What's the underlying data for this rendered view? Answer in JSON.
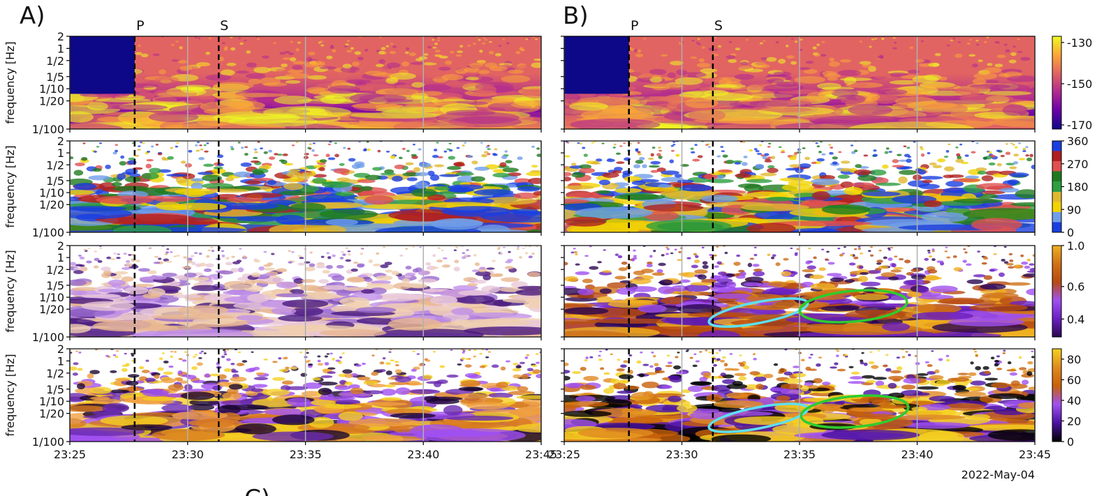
{
  "chart_data": [
    {
      "type": "spectrogram",
      "title": "A)",
      "ylabel": "frequency [Hz]",
      "yscale": "log",
      "ylim": [
        0.01,
        2
      ],
      "yticks": [
        {
          "value": 2,
          "label": "2"
        },
        {
          "value": 1,
          "label": "1"
        },
        {
          "value": 0.5,
          "label": "1/2"
        },
        {
          "value": 0.2,
          "label": "1/5"
        },
        {
          "value": 0.1,
          "label": "1/10"
        },
        {
          "value": 0.05,
          "label": "1/20"
        },
        {
          "value": 0.01,
          "label": "1/100"
        }
      ],
      "ytick_labels": true,
      "xlim": [
        "23:25",
        "23:45"
      ],
      "xticks": [
        "23:25",
        "23:30",
        "23:35",
        "23:40",
        "23:45"
      ],
      "xtick_labels": false,
      "markers": [
        {
          "label": "P",
          "time": "23:27:45"
        },
        {
          "label": "S",
          "time": "23:31:19"
        }
      ],
      "colormap": [
        "#0d0887",
        "#6a00a8",
        "#b12a90",
        "#e16462",
        "#fca636",
        "#f0f921"
      ]
    },
    {
      "type": "spectrogram",
      "ylabel": "frequency [Hz]",
      "yscale": "log",
      "ylim": [
        0.01,
        2
      ],
      "yticks": [
        {
          "value": 2,
          "label": "2"
        },
        {
          "value": 1,
          "label": "1"
        },
        {
          "value": 0.5,
          "label": "1/2"
        },
        {
          "value": 0.2,
          "label": "1/5"
        },
        {
          "value": 0.1,
          "label": "1/10"
        },
        {
          "value": 0.05,
          "label": "1/20"
        },
        {
          "value": 0.01,
          "label": "1/100"
        }
      ],
      "ytick_labels": true,
      "xlim": [
        "23:25",
        "23:45"
      ],
      "xticks": [
        "23:25",
        "23:30",
        "23:35",
        "23:40",
        "23:45"
      ],
      "xtick_labels": false,
      "markers": [
        {
          "time": "23:27:45"
        },
        {
          "time": "23:31:19"
        }
      ],
      "background": "#ffffff",
      "colormap": [
        "#1a3fe0",
        "#6f9ee8",
        "#f2d300",
        "#e0b830",
        "#2e9e40",
        "#1f7a1f",
        "#e05050",
        "#b02020",
        "#1a3fe0"
      ]
    },
    {
      "type": "spectrogram",
      "ylabel": "frequency [Hz]",
      "yscale": "log",
      "ylim": [
        0.01,
        2
      ],
      "yticks": [
        {
          "value": 2,
          "label": "2"
        },
        {
          "value": 1,
          "label": "1"
        },
        {
          "value": 0.5,
          "label": "1/2"
        },
        {
          "value": 0.2,
          "label": "1/5"
        },
        {
          "value": 0.1,
          "label": "1/10"
        },
        {
          "value": 0.05,
          "label": "1/20"
        },
        {
          "value": 0.01,
          "label": "1/100"
        }
      ],
      "ytick_labels": true,
      "xlim": [
        "23:25",
        "23:45"
      ],
      "xticks": [
        "23:25",
        "23:30",
        "23:35",
        "23:40",
        "23:45"
      ],
      "xtick_labels": false,
      "markers": [
        {
          "time": "23:27:45"
        },
        {
          "time": "23:31:19"
        }
      ],
      "background": "#ffffff",
      "colormap": [
        "#e8c8d8",
        "#9a6ad0",
        "#c090e8",
        "#f0d0b0",
        "#e8b890",
        "#4a1a80"
      ]
    },
    {
      "type": "spectrogram",
      "ylabel": "frequency [Hz]",
      "yscale": "log",
      "ylim": [
        0.01,
        2
      ],
      "yticks": [
        {
          "value": 2,
          "label": "2"
        },
        {
          "value": 1,
          "label": "1"
        },
        {
          "value": 0.5,
          "label": "1/2"
        },
        {
          "value": 0.2,
          "label": "1/5"
        },
        {
          "value": 0.1,
          "label": "1/10"
        },
        {
          "value": 0.05,
          "label": "1/20"
        },
        {
          "value": 0.01,
          "label": "1/100"
        }
      ],
      "ytick_labels": true,
      "xlim": [
        "23:25",
        "23:45"
      ],
      "xticks": [
        "23:25",
        "23:30",
        "23:35",
        "23:40",
        "23:45"
      ],
      "xtick_labels": true,
      "markers": [
        {
          "time": "23:27:45"
        },
        {
          "time": "23:31:19"
        }
      ],
      "background": "#ffffff",
      "colormap": [
        "#1a0530",
        "#6a2ab0",
        "#a050f0",
        "#d87a20",
        "#f0a040",
        "#f5d020"
      ]
    },
    {
      "type": "spectrogram",
      "title": "B)",
      "yscale": "log",
      "ylim": [
        0.01,
        2
      ],
      "yticks": [
        2,
        1,
        0.5,
        0.2,
        0.1,
        0.05,
        0.01
      ],
      "ytick_labels": false,
      "xlim": [
        "23:25",
        "23:45"
      ],
      "xticks": [
        "23:25",
        "23:30",
        "23:35",
        "23:40",
        "23:45"
      ],
      "xtick_labels": false,
      "markers": [
        {
          "label": "P",
          "time": "23:27:45"
        },
        {
          "label": "S",
          "time": "23:31:19"
        }
      ],
      "colormap": [
        "#0d0887",
        "#6a00a8",
        "#b12a90",
        "#e16462",
        "#fca636",
        "#f0f921"
      ],
      "colorbar": {
        "lim": [
          -172,
          -127
        ],
        "ticks": [
          -130,
          -150,
          -170
        ]
      }
    },
    {
      "type": "spectrogram",
      "yscale": "log",
      "ylim": [
        0.01,
        2
      ],
      "yticks": [
        2,
        1,
        0.5,
        0.2,
        0.1,
        0.05,
        0.01
      ],
      "ytick_labels": false,
      "xlim": [
        "23:25",
        "23:45"
      ],
      "xticks": [
        "23:25",
        "23:30",
        "23:35",
        "23:40",
        "23:45"
      ],
      "xtick_labels": false,
      "markers": [
        {
          "time": "23:27:45"
        },
        {
          "time": "23:31:19"
        }
      ],
      "background": "#ffffff",
      "colormap": [
        "#1a3fe0",
        "#6f9ee8",
        "#f2d300",
        "#e0b830",
        "#2e9e40",
        "#1f7a1f",
        "#e05050",
        "#b02020",
        "#1a3fe0"
      ],
      "colorbar": {
        "lim": [
          0,
          360
        ],
        "ticks": [
          360,
          270,
          180,
          90,
          0
        ],
        "discrete": true
      }
    },
    {
      "type": "spectrogram",
      "yscale": "log",
      "ylim": [
        0.01,
        2
      ],
      "yticks": [
        2,
        1,
        0.5,
        0.2,
        0.1,
        0.05,
        0.01
      ],
      "ytick_labels": false,
      "xlim": [
        "23:25",
        "23:45"
      ],
      "xticks": [
        "23:25",
        "23:30",
        "23:35",
        "23:40",
        "23:45"
      ],
      "xtick_labels": false,
      "markers": [
        {
          "time": "23:27:45"
        },
        {
          "time": "23:31:19"
        }
      ],
      "background": "#ffffff",
      "colormap": [
        "#2a0850",
        "#6a20c0",
        "#a050f0",
        "#b84a10",
        "#d07018",
        "#f0b020"
      ],
      "colorbar": {
        "lim": [
          0.32,
          1.0
        ],
        "scale": "log",
        "ticks": [
          {
            "value": 1.0,
            "label": "1.0"
          },
          0.6,
          0.4
        ]
      }
    },
    {
      "type": "spectrogram",
      "yscale": "log",
      "ylim": [
        0.01,
        2
      ],
      "yticks": [
        2,
        1,
        0.5,
        0.2,
        0.1,
        0.05,
        0.01
      ],
      "ytick_labels": false,
      "xlim": [
        "23:25",
        "23:45"
      ],
      "xticks": [
        "23:25",
        "23:30",
        "23:35",
        "23:40",
        "23:45"
      ],
      "xtick_labels": true,
      "markers": [
        {
          "time": "23:27:45"
        },
        {
          "time": "23:31:19"
        }
      ],
      "background": "#ffffff",
      "colormap": [
        "#000000",
        "#4a10a0",
        "#a050f0",
        "#c8600a",
        "#e08a20",
        "#f5d020"
      ],
      "colorbar": {
        "lim": [
          0,
          90
        ],
        "ticks": [
          80,
          60,
          40,
          20,
          0
        ]
      },
      "date": "2022-May-04"
    }
  ],
  "footer": {
    "label": "C)"
  }
}
